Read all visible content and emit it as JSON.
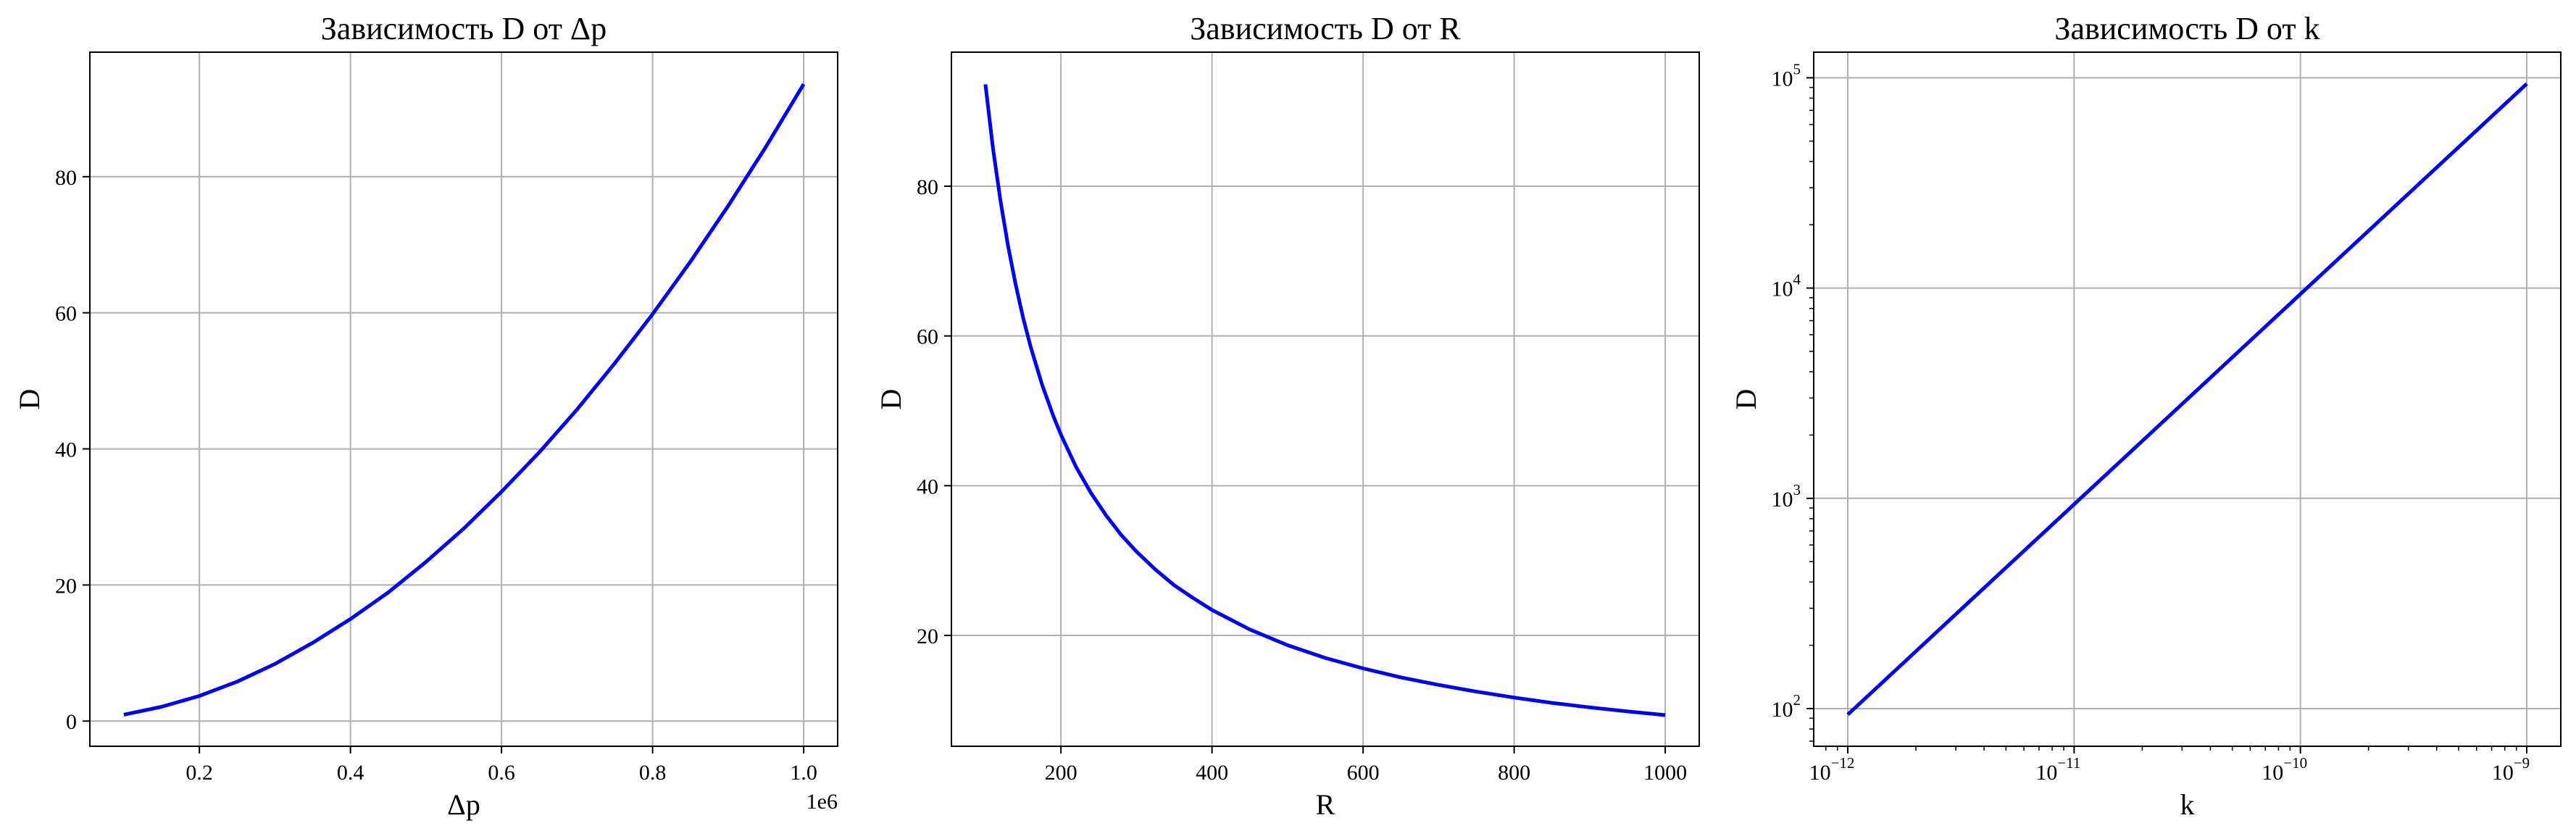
{
  "chart_data": [
    {
      "type": "line",
      "title": "Зависимость D от Δp",
      "xlabel": "Δp",
      "ylabel": "D",
      "x_offset_label": "1e6",
      "x_scale": "linear",
      "y_scale": "linear",
      "xlim": [
        55000,
        1045000
      ],
      "ylim": [
        -3.7,
        98.3
      ],
      "xticks": [
        200000,
        400000,
        600000,
        800000,
        1000000
      ],
      "xtick_labels": [
        "0.2",
        "0.4",
        "0.6",
        "0.8",
        "1.0"
      ],
      "yticks": [
        0,
        20,
        40,
        60,
        80
      ],
      "ytick_labels": [
        "0",
        "20",
        "40",
        "60",
        "80"
      ],
      "grid": true,
      "line_color": "#0000ff",
      "series": [
        {
          "x": [
            100000,
            150000,
            200000,
            250000,
            300000,
            350000,
            400000,
            450000,
            500000,
            550000,
            600000,
            650000,
            700000,
            750000,
            800000,
            850000,
            900000,
            950000,
            1000000
          ],
          "values": [
            0.94,
            2.1,
            3.7,
            5.8,
            8.4,
            11.5,
            15.0,
            18.9,
            23.4,
            28.3,
            33.7,
            39.5,
            45.8,
            52.6,
            59.8,
            67.5,
            75.7,
            84.4,
            93.6
          ]
        }
      ]
    },
    {
      "type": "line",
      "title": "Зависимость D от R",
      "xlabel": "R",
      "ylabel": "D",
      "x_scale": "linear",
      "y_scale": "linear",
      "xlim": [
        55,
        1045
      ],
      "ylim": [
        5.2,
        97.9
      ],
      "xticks": [
        200,
        400,
        600,
        800,
        1000
      ],
      "xtick_labels": [
        "200",
        "400",
        "600",
        "800",
        "1000"
      ],
      "yticks": [
        20,
        40,
        60,
        80
      ],
      "ytick_labels": [
        "20",
        "40",
        "60",
        "80"
      ],
      "grid": true,
      "line_color": "#0000ff",
      "series": [
        {
          "x": [
            100,
            110,
            120,
            130,
            140,
            150,
            160,
            175,
            190,
            200,
            220,
            240,
            260,
            280,
            300,
            325,
            350,
            375,
            400,
            450,
            500,
            550,
            600,
            650,
            700,
            750,
            800,
            850,
            900,
            950,
            1000
          ],
          "values": [
            93.6,
            85.1,
            78.0,
            72.0,
            66.9,
            62.4,
            58.5,
            53.5,
            49.3,
            46.8,
            42.5,
            39.0,
            36.0,
            33.4,
            31.2,
            28.8,
            26.7,
            25.0,
            23.4,
            20.8,
            18.7,
            17.0,
            15.6,
            14.4,
            13.4,
            12.5,
            11.7,
            11.0,
            10.4,
            9.85,
            9.36
          ]
        }
      ]
    },
    {
      "type": "line",
      "title": "Зависимость D от k",
      "xlabel": "k",
      "ylabel": "D",
      "x_scale": "log",
      "y_scale": "log",
      "xlim": [
        7.07e-13,
        1.414e-09
      ],
      "ylim": [
        66.2,
        132400
      ],
      "xticks": [
        1e-12,
        1e-11,
        1e-10,
        1e-09
      ],
      "xtick_labels": [
        [
          "10",
          "−12"
        ],
        [
          "10",
          "−11"
        ],
        [
          "10",
          "−10"
        ],
        [
          "10",
          "−9"
        ]
      ],
      "yticks": [
        100,
        1000,
        10000,
        100000
      ],
      "ytick_labels": [
        [
          "10",
          "2"
        ],
        [
          "10",
          "3"
        ],
        [
          "10",
          "4"
        ],
        [
          "10",
          "5"
        ]
      ],
      "grid": true,
      "line_color": "#0000ff",
      "series": [
        {
          "x": [
            1e-12,
            1e-09
          ],
          "values": [
            93.6,
            93600
          ]
        }
      ]
    }
  ]
}
